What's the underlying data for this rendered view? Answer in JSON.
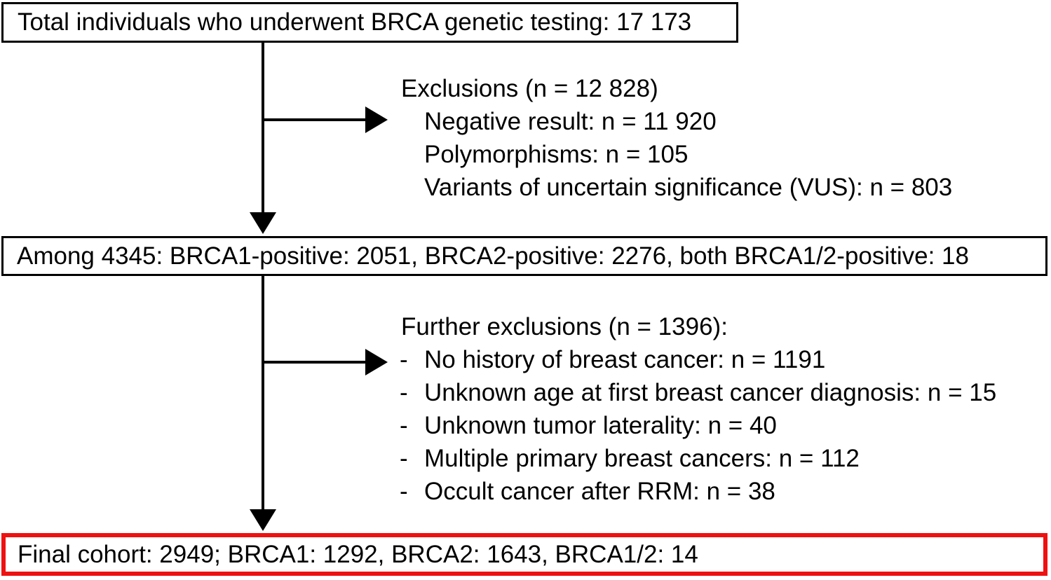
{
  "boxes": {
    "total": "Total individuals who underwent BRCA genetic testing: 17 173",
    "among": "Among 4345: BRCA1-positive: 2051, BRCA2-positive: 2276, both BRCA1/2-positive: 18",
    "final": "Final cohort: 2949; BRCA1: 1292, BRCA2: 1643, BRCA1/2: 14"
  },
  "exclusions": {
    "header": "Exclusions (n = 12 828)",
    "items": [
      "Negative result: n = 11 920",
      "Polymorphisms: n = 105",
      "Variants of uncertain significance (VUS): n = 803"
    ]
  },
  "further_exclusions": {
    "header": "Further exclusions (n = 1396):",
    "bullet": "-",
    "items": [
      "No history of breast cancer: n = 1191",
      "Unknown age at first breast cancer diagnosis: n = 15",
      "Unknown tumor laterality: n = 40",
      "Multiple primary breast cancers: n = 112",
      "Occult cancer after RRM: n = 38"
    ]
  },
  "colors": {
    "text": "#000000",
    "line": "#000000",
    "final_box_border": "#ee1111",
    "background": "#ffffff"
  }
}
